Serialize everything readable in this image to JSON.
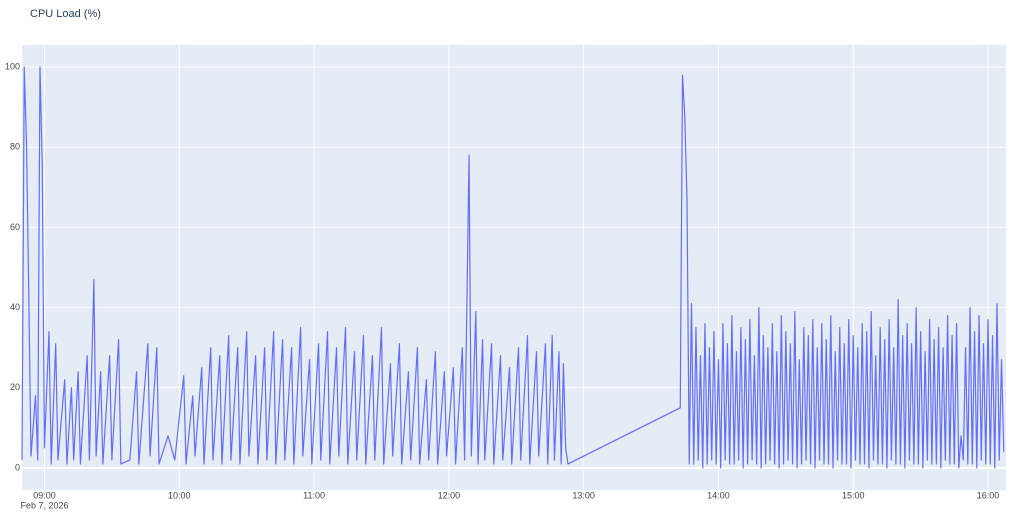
{
  "chart_data": {
    "type": "line",
    "title": "CPU Load (%)",
    "color": "#636efa",
    "grid": true,
    "x_date_label": "Feb 7, 2026",
    "xlim": [
      "2026-02-07 08:50",
      "2026-02-07 16:08"
    ],
    "xticks": [
      {
        "value": "2026-02-07 09:00",
        "label": "09:00"
      },
      {
        "value": "2026-02-07 10:00",
        "label": "10:00"
      },
      {
        "value": "2026-02-07 11:00",
        "label": "11:00"
      },
      {
        "value": "2026-02-07 12:00",
        "label": "12:00"
      },
      {
        "value": "2026-02-07 13:00",
        "label": "13:00"
      },
      {
        "value": "2026-02-07 14:00",
        "label": "14:00"
      },
      {
        "value": "2026-02-07 15:00",
        "label": "15:00"
      },
      {
        "value": "2026-02-07 16:00",
        "label": "16:00"
      }
    ],
    "ylim": [
      -5.5,
      105.5
    ],
    "yticks": [
      0,
      20,
      40,
      60,
      80,
      100
    ],
    "x": [
      "2026-02-07 08:50",
      "2026-02-07 08:51",
      "2026-02-07 08:52",
      "2026-02-07 08:53",
      "2026-02-07 08:54",
      "2026-02-07 08:56",
      "2026-02-07 08:57",
      "2026-02-07 08:58",
      "2026-02-07 08:59",
      "2026-02-07 09:00",
      "2026-02-07 09:02",
      "2026-02-07 09:03",
      "2026-02-07 09:05",
      "2026-02-07 09:06",
      "2026-02-07 09:09",
      "2026-02-07 09:10",
      "2026-02-07 09:12",
      "2026-02-07 09:13",
      "2026-02-07 09:15",
      "2026-02-07 09:16",
      "2026-02-07 09:19",
      "2026-02-07 09:20",
      "2026-02-07 09:22",
      "2026-02-07 09:23",
      "2026-02-07 09:25",
      "2026-02-07 09:26",
      "2026-02-07 09:29",
      "2026-02-07 09:30",
      "2026-02-07 09:33",
      "2026-02-07 09:34",
      "2026-02-07 09:38",
      "2026-02-07 09:41",
      "2026-02-07 09:42",
      "2026-02-07 09:46",
      "2026-02-07 09:47",
      "2026-02-07 09:50",
      "2026-02-07 09:51",
      "2026-02-07 09:55",
      "2026-02-07 09:58",
      "2026-02-07 10:02",
      "2026-02-07 10:03",
      "2026-02-07 10:06",
      "2026-02-07 10:07",
      "2026-02-07 10:10",
      "2026-02-07 10:11",
      "2026-02-07 10:14",
      "2026-02-07 10:15",
      "2026-02-07 10:18",
      "2026-02-07 10:19",
      "2026-02-07 10:22",
      "2026-02-07 10:23",
      "2026-02-07 10:26",
      "2026-02-07 10:27",
      "2026-02-07 10:30",
      "2026-02-07 10:31",
      "2026-02-07 10:34",
      "2026-02-07 10:35",
      "2026-02-07 10:38",
      "2026-02-07 10:39",
      "2026-02-07 10:42",
      "2026-02-07 10:43",
      "2026-02-07 10:46",
      "2026-02-07 10:47",
      "2026-02-07 10:50",
      "2026-02-07 10:51",
      "2026-02-07 10:54",
      "2026-02-07 10:55",
      "2026-02-07 10:58",
      "2026-02-07 10:59",
      "2026-02-07 11:02",
      "2026-02-07 11:03",
      "2026-02-07 11:06",
      "2026-02-07 11:07",
      "2026-02-07 11:10",
      "2026-02-07 11:11",
      "2026-02-07 11:14",
      "2026-02-07 11:15",
      "2026-02-07 11:18",
      "2026-02-07 11:19",
      "2026-02-07 11:22",
      "2026-02-07 11:23",
      "2026-02-07 11:26",
      "2026-02-07 11:27",
      "2026-02-07 11:30",
      "2026-02-07 11:31",
      "2026-02-07 11:34",
      "2026-02-07 11:35",
      "2026-02-07 11:38",
      "2026-02-07 11:39",
      "2026-02-07 11:42",
      "2026-02-07 11:43",
      "2026-02-07 11:46",
      "2026-02-07 11:47",
      "2026-02-07 11:50",
      "2026-02-07 11:51",
      "2026-02-07 11:54",
      "2026-02-07 11:55",
      "2026-02-07 11:58",
      "2026-02-07 11:59",
      "2026-02-07 12:02",
      "2026-02-07 12:03",
      "2026-02-07 12:06",
      "2026-02-07 12:07",
      "2026-02-07 12:09",
      "2026-02-07 12:10",
      "2026-02-07 12:12",
      "2026-02-07 12:13",
      "2026-02-07 12:15",
      "2026-02-07 12:16",
      "2026-02-07 12:19",
      "2026-02-07 12:20",
      "2026-02-07 12:23",
      "2026-02-07 12:24",
      "2026-02-07 12:27",
      "2026-02-07 12:28",
      "2026-02-07 12:31",
      "2026-02-07 12:32",
      "2026-02-07 12:35",
      "2026-02-07 12:36",
      "2026-02-07 12:39",
      "2026-02-07 12:40",
      "2026-02-07 12:43",
      "2026-02-07 12:44",
      "2026-02-07 12:46",
      "2026-02-07 12:47",
      "2026-02-07 12:49",
      "2026-02-07 12:50",
      "2026-02-07 12:51",
      "2026-02-07 12:52",
      "2026-02-07 12:53",
      "2026-02-07 13:43",
      "2026-02-07 13:44",
      "2026-02-07 13:45",
      "2026-02-07 13:46",
      "2026-02-07 13:47",
      "2026-02-07 13:48",
      "2026-02-07 13:49",
      "2026-02-07 13:50",
      "2026-02-07 13:51",
      "2026-02-07 13:52",
      "2026-02-07 13:53",
      "2026-02-07 13:54",
      "2026-02-07 13:55",
      "2026-02-07 13:56",
      "2026-02-07 13:57",
      "2026-02-07 13:58",
      "2026-02-07 13:59",
      "2026-02-07 14:00",
      "2026-02-07 14:01",
      "2026-02-07 14:02",
      "2026-02-07 14:03",
      "2026-02-07 14:04",
      "2026-02-07 14:05",
      "2026-02-07 14:06",
      "2026-02-07 14:07",
      "2026-02-07 14:08",
      "2026-02-07 14:09",
      "2026-02-07 14:10",
      "2026-02-07 14:11",
      "2026-02-07 14:12",
      "2026-02-07 14:13",
      "2026-02-07 14:14",
      "2026-02-07 14:15",
      "2026-02-07 14:16",
      "2026-02-07 14:17",
      "2026-02-07 14:18",
      "2026-02-07 14:19",
      "2026-02-07 14:20",
      "2026-02-07 14:21",
      "2026-02-07 14:22",
      "2026-02-07 14:23",
      "2026-02-07 14:24",
      "2026-02-07 14:25",
      "2026-02-07 14:26",
      "2026-02-07 14:27",
      "2026-02-07 14:28",
      "2026-02-07 14:29",
      "2026-02-07 14:30",
      "2026-02-07 14:31",
      "2026-02-07 14:32",
      "2026-02-07 14:33",
      "2026-02-07 14:34",
      "2026-02-07 14:35",
      "2026-02-07 14:36",
      "2026-02-07 14:37",
      "2026-02-07 14:38",
      "2026-02-07 14:39",
      "2026-02-07 14:40",
      "2026-02-07 14:41",
      "2026-02-07 14:42",
      "2026-02-07 14:43",
      "2026-02-07 14:44",
      "2026-02-07 14:45",
      "2026-02-07 14:46",
      "2026-02-07 14:47",
      "2026-02-07 14:48",
      "2026-02-07 14:49",
      "2026-02-07 14:50",
      "2026-02-07 14:51",
      "2026-02-07 14:52",
      "2026-02-07 14:53",
      "2026-02-07 14:54",
      "2026-02-07 14:55",
      "2026-02-07 14:56",
      "2026-02-07 14:57",
      "2026-02-07 14:58",
      "2026-02-07 14:59",
      "2026-02-07 15:00",
      "2026-02-07 15:01",
      "2026-02-07 15:02",
      "2026-02-07 15:03",
      "2026-02-07 15:04",
      "2026-02-07 15:05",
      "2026-02-07 15:06",
      "2026-02-07 15:07",
      "2026-02-07 15:08",
      "2026-02-07 15:09",
      "2026-02-07 15:10",
      "2026-02-07 15:11",
      "2026-02-07 15:12",
      "2026-02-07 15:13",
      "2026-02-07 15:14",
      "2026-02-07 15:15",
      "2026-02-07 15:16",
      "2026-02-07 15:17",
      "2026-02-07 15:18",
      "2026-02-07 15:19",
      "2026-02-07 15:20",
      "2026-02-07 15:21",
      "2026-02-07 15:22",
      "2026-02-07 15:23",
      "2026-02-07 15:24",
      "2026-02-07 15:25",
      "2026-02-07 15:26",
      "2026-02-07 15:27",
      "2026-02-07 15:28",
      "2026-02-07 15:29",
      "2026-02-07 15:30",
      "2026-02-07 15:31",
      "2026-02-07 15:32",
      "2026-02-07 15:33",
      "2026-02-07 15:34",
      "2026-02-07 15:35",
      "2026-02-07 15:36",
      "2026-02-07 15:37",
      "2026-02-07 15:38",
      "2026-02-07 15:39",
      "2026-02-07 15:40",
      "2026-02-07 15:41",
      "2026-02-07 15:42",
      "2026-02-07 15:43",
      "2026-02-07 15:44",
      "2026-02-07 15:45",
      "2026-02-07 15:46",
      "2026-02-07 15:47",
      "2026-02-07 15:48",
      "2026-02-07 15:49",
      "2026-02-07 15:50",
      "2026-02-07 15:51",
      "2026-02-07 15:52",
      "2026-02-07 15:53",
      "2026-02-07 15:54",
      "2026-02-07 15:55",
      "2026-02-07 15:56",
      "2026-02-07 15:57",
      "2026-02-07 15:58",
      "2026-02-07 15:59",
      "2026-02-07 16:00",
      "2026-02-07 16:01",
      "2026-02-07 16:02",
      "2026-02-07 16:03",
      "2026-02-07 16:04",
      "2026-02-07 16:05",
      "2026-02-07 16:06",
      "2026-02-07 16:07"
    ],
    "values": [
      2,
      100,
      81,
      44,
      3,
      18,
      2,
      100,
      76,
      5,
      34,
      1,
      31,
      2,
      22,
      1,
      20,
      2,
      24,
      1,
      28,
      2,
      47,
      3,
      24,
      1,
      28,
      2,
      32,
      1,
      2,
      24,
      1,
      31,
      3,
      30,
      1,
      8,
      2,
      23,
      1,
      18,
      3,
      25,
      1,
      30,
      2,
      28,
      1,
      33,
      2,
      30,
      1,
      34,
      3,
      28,
      1,
      30,
      2,
      34,
      1,
      32,
      2,
      30,
      1,
      35,
      3,
      27,
      1,
      31,
      2,
      34,
      1,
      30,
      3,
      35,
      1,
      29,
      2,
      33,
      1,
      28,
      2,
      35,
      1,
      26,
      3,
      31,
      1,
      24,
      2,
      30,
      1,
      22,
      2,
      29,
      1,
      24,
      3,
      25,
      1,
      30,
      2,
      78,
      3,
      39,
      1,
      32,
      2,
      31,
      1,
      28,
      2,
      25,
      1,
      30,
      2,
      33,
      1,
      29,
      3,
      31,
      1,
      33,
      2,
      29,
      1,
      26,
      5,
      1,
      15,
      98,
      88,
      67,
      1,
      41,
      1,
      35,
      2,
      28,
      0,
      36,
      1,
      30,
      2,
      34,
      1,
      27,
      0,
      36,
      2,
      31,
      1,
      38,
      1,
      29,
      2,
      35,
      0,
      32,
      1,
      37,
      2,
      28,
      1,
      40,
      0,
      33,
      1,
      30,
      2,
      36,
      1,
      29,
      0,
      38,
      1,
      34,
      2,
      31,
      1,
      39,
      0,
      27,
      1,
      35,
      2,
      33,
      1,
      37,
      0,
      30,
      2,
      36,
      1,
      32,
      1,
      38,
      0,
      29,
      2,
      35,
      1,
      31,
      1,
      37,
      0,
      33,
      2,
      30,
      1,
      36,
      1,
      34,
      0,
      39,
      2,
      28,
      1,
      35,
      1,
      32,
      0,
      37,
      2,
      30,
      1,
      42,
      1,
      33,
      0,
      36,
      2,
      31,
      1,
      40,
      1,
      34,
      0,
      29,
      2,
      37,
      1,
      32,
      1,
      35,
      0,
      30,
      2,
      38,
      1,
      33,
      1,
      36,
      0,
      8,
      2,
      30,
      1,
      40,
      1,
      34,
      0,
      38,
      2,
      31,
      1,
      37,
      1,
      33,
      0,
      41,
      2,
      27,
      4
    ]
  }
}
